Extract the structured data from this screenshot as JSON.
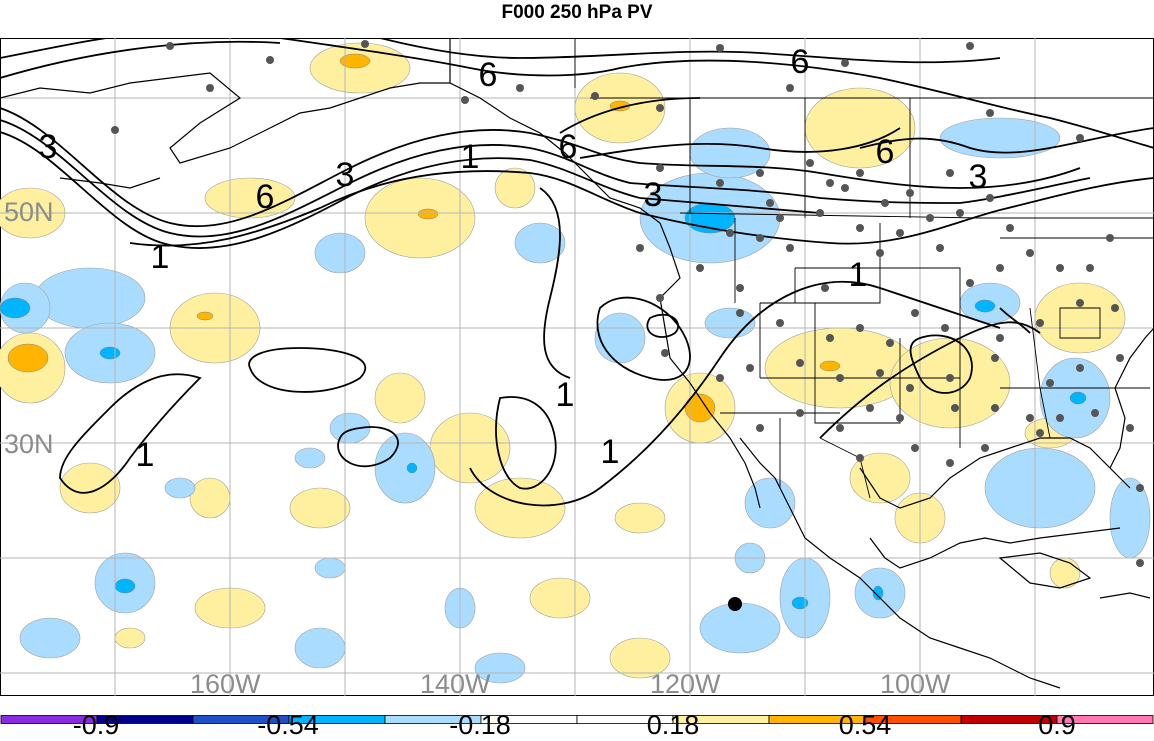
{
  "title": "F000 250 hPa PV",
  "lat_labels": [
    "50N",
    "30N"
  ],
  "lon_labels": [
    "160W",
    "140W",
    "120W",
    "100W"
  ],
  "contour_labels": [
    "6",
    "6",
    "6",
    "3",
    "3",
    "3",
    "3",
    "1",
    "1",
    "1",
    "1",
    "1",
    "1",
    "6",
    "6"
  ],
  "colorbar": {
    "tick_labels": [
      "-0.9",
      "-0.54",
      "-0.18",
      "0.18",
      "0.54",
      "0.9"
    ],
    "colors": [
      "#8a2be2",
      "#00008b",
      "#1e50c8",
      "#00b4ff",
      "#aadcff",
      "#ffffff",
      "#ffffff",
      "#fff0a0",
      "#ffb400",
      "#ff5000",
      "#c00000",
      "#ff78b4"
    ]
  },
  "colors": {
    "land_outline": "#000000",
    "grid": "#b4b4b4",
    "contour": "#000000",
    "station": "#555555",
    "marker": "#000000"
  }
}
